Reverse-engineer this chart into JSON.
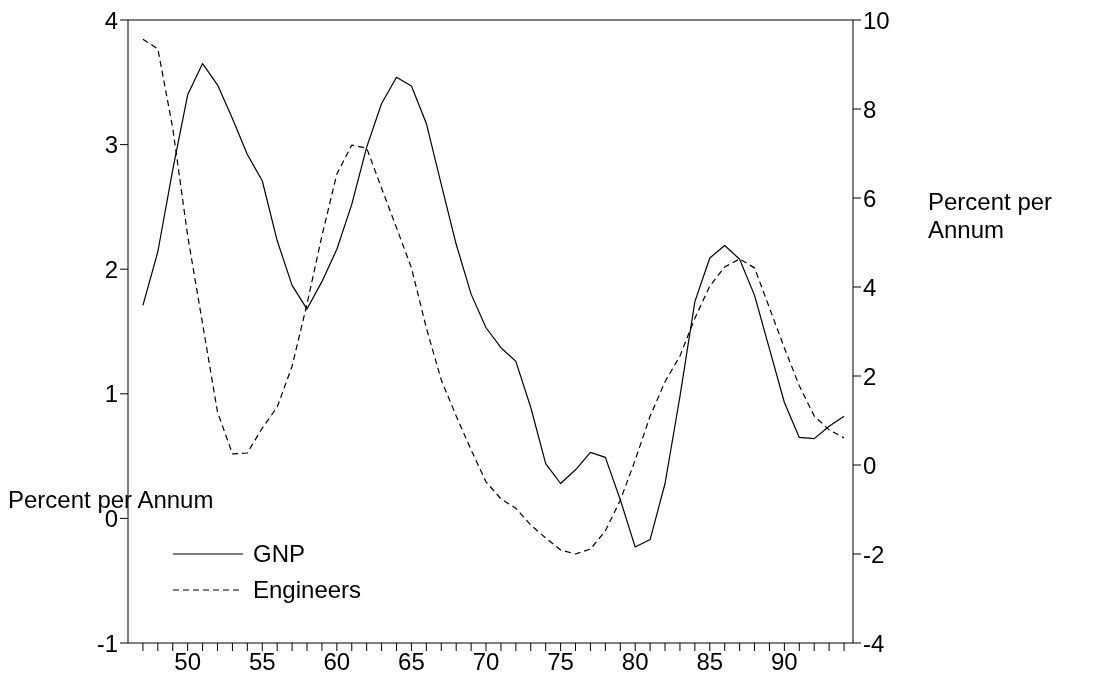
{
  "chart_data": {
    "type": "line",
    "ylabel": "Percent per Annum",
    "y2label": "Percent per Annum",
    "x": [
      47,
      48,
      49,
      50,
      51,
      52,
      53,
      54,
      55,
      56,
      57,
      58,
      59,
      60,
      61,
      62,
      63,
      64,
      65,
      66,
      67,
      68,
      69,
      70,
      71,
      72,
      73,
      74,
      75,
      76,
      77,
      78,
      79,
      80,
      81,
      82,
      83,
      84,
      85,
      86,
      87,
      88,
      89,
      90,
      91,
      92,
      93,
      94
    ],
    "series": [
      {
        "name": "GNP",
        "color": "#000000",
        "line_style": "solid",
        "values": [
          1.71,
          2.14,
          2.8,
          3.4,
          3.65,
          3.48,
          3.21,
          2.92,
          2.71,
          2.23,
          1.87,
          1.68,
          1.9,
          2.16,
          2.52,
          2.98,
          3.33,
          3.54,
          3.47,
          3.17,
          2.68,
          2.2,
          1.8,
          1.53,
          1.37,
          1.26,
          0.89,
          0.44,
          0.28,
          0.39,
          0.53,
          0.49,
          0.15,
          -0.23,
          -0.17,
          0.28,
          0.98,
          1.74,
          2.09,
          2.19,
          2.08,
          1.79,
          1.36,
          0.93,
          0.65,
          0.64,
          0.74,
          0.82
        ]
      },
      {
        "name": "Engineers",
        "color": "#000000",
        "line_style": "dashed",
        "axis": "y2",
        "values": [
          9.57,
          9.35,
          7.57,
          5.15,
          3.17,
          1.19,
          0.25,
          0.27,
          0.83,
          1.3,
          2.22,
          3.62,
          5.15,
          6.54,
          7.19,
          7.12,
          6.22,
          5.33,
          4.43,
          3.08,
          1.91,
          1.1,
          0.34,
          -0.38,
          -0.76,
          -0.97,
          -1.35,
          -1.64,
          -1.91,
          -2.0,
          -1.89,
          -1.48,
          -0.79,
          0.11,
          1.1,
          1.87,
          2.45,
          3.3,
          4.02,
          4.45,
          4.63,
          4.43,
          3.53,
          2.63,
          1.78,
          1.1,
          0.79,
          0.61
        ]
      }
    ],
    "xlim": [
      46,
      94.6
    ],
    "xticks": [
      {
        "value": 47,
        "label": null
      },
      {
        "value": 48,
        "label": null
      },
      {
        "value": 49,
        "label": null
      },
      50,
      {
        "value": 51,
        "label": null
      },
      {
        "value": 52,
        "label": null
      },
      {
        "value": 53,
        "label": null
      },
      {
        "value": 54,
        "label": null
      },
      55,
      {
        "value": 56,
        "label": null
      },
      {
        "value": 57,
        "label": null
      },
      {
        "value": 58,
        "label": null
      },
      {
        "value": 59,
        "label": null
      },
      60,
      {
        "value": 61,
        "label": null
      },
      {
        "value": 62,
        "label": null
      },
      {
        "value": 63,
        "label": null
      },
      {
        "value": 64,
        "label": null
      },
      65,
      {
        "value": 66,
        "label": null
      },
      {
        "value": 67,
        "label": null
      },
      {
        "value": 68,
        "label": null
      },
      {
        "value": 69,
        "label": null
      },
      70,
      {
        "value": 71,
        "label": null
      },
      {
        "value": 72,
        "label": null
      },
      {
        "value": 73,
        "label": null
      },
      {
        "value": 74,
        "label": null
      },
      75,
      {
        "value": 76,
        "label": null
      },
      {
        "value": 77,
        "label": null
      },
      {
        "value": 78,
        "label": null
      },
      {
        "value": 79,
        "label": null
      },
      80,
      {
        "value": 81,
        "label": null
      },
      {
        "value": 82,
        "label": null
      },
      {
        "value": 83,
        "label": null
      },
      {
        "value": 84,
        "label": null
      },
      85,
      {
        "value": 86,
        "label": null
      },
      {
        "value": 87,
        "label": null
      },
      {
        "value": 88,
        "label": null
      },
      {
        "value": 89,
        "label": null
      },
      90,
      {
        "value": 91,
        "label": null
      },
      {
        "value": 92,
        "label": null
      },
      {
        "value": 93,
        "label": null
      },
      {
        "value": 94,
        "label": null
      }
    ],
    "ylim": [
      -1,
      4
    ],
    "yticks": [
      -1,
      0,
      1,
      2,
      3,
      4
    ],
    "y2lim": [
      -4,
      10
    ],
    "y2ticks": [
      -4,
      -2,
      0,
      2,
      4,
      6,
      8,
      10
    ],
    "grid": false,
    "legend": "bottom left",
    "marker": "none"
  }
}
